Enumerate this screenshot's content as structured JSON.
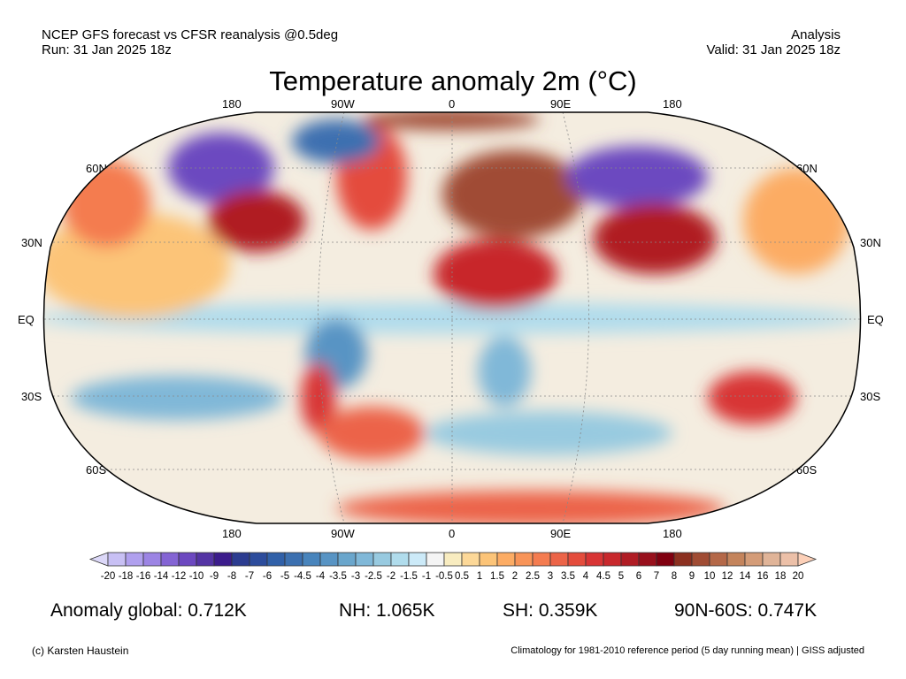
{
  "header": {
    "left_line1": "NCEP GFS forecast vs CFSR reanalysis @0.5deg",
    "left_line2": "Run: 31 Jan 2025 18z",
    "right_line1": "Analysis",
    "right_line2": "Valid: 31 Jan 2025 18z"
  },
  "title": "Temperature anomaly 2m (°C)",
  "map": {
    "lon_labels": [
      "180",
      "90W",
      "0",
      "90E",
      "180"
    ],
    "lat_labels": [
      "60N",
      "30N",
      "EQ",
      "30S",
      "60S"
    ]
  },
  "colorbar": {
    "labels": [
      "-20",
      "-18",
      "-16",
      "-14",
      "-12",
      "-10",
      "-9",
      "-8",
      "-7",
      "-6",
      "-5",
      "-4.5",
      "-4",
      "-3.5",
      "-3",
      "-2.5",
      "-2",
      "-1.5",
      "-1",
      "-0.5",
      "0.5",
      "1",
      "1.5",
      "2",
      "2.5",
      "3",
      "3.5",
      "4",
      "4.5",
      "5",
      "6",
      "7",
      "8",
      "9",
      "10",
      "12",
      "14",
      "16",
      "18",
      "20"
    ],
    "colors": [
      "#c8c0f4",
      "#b0a0ee",
      "#9c84e4",
      "#8464d4",
      "#6c48c0",
      "#5434a4",
      "#3c1c8c",
      "#2c3c90",
      "#2c4c9c",
      "#3060a8",
      "#3c70b0",
      "#4884bc",
      "#5894c4",
      "#6aa6cc",
      "#80b8d8",
      "#98cae0",
      "#b0dcec",
      "#cceaf8",
      "#f4f4f4",
      "#f8ecc0",
      "#fcd898",
      "#fcc478",
      "#fcac64",
      "#f89458",
      "#f47c50",
      "#ec6448",
      "#e44c3c",
      "#d83434",
      "#c8282c",
      "#b01c24",
      "#98101c",
      "#800010",
      "#8c3020",
      "#a04c34",
      "#b46848",
      "#c4845c",
      "#d49c78",
      "#e0b498",
      "#ecc0a8"
    ],
    "under_color": "#dcd8f8",
    "over_color": "#fcd0b8"
  },
  "stats": {
    "global": "Anomaly global: 0.712K",
    "nh": "NH: 1.065K",
    "sh": "SH: 0.359K",
    "arctic": "90N-60S: 0.747K"
  },
  "footer": {
    "credit": "(c) Karsten Haustein",
    "note": "Climatology for 1981-2010 reference period (5 day running mean) | GISS adjusted"
  }
}
